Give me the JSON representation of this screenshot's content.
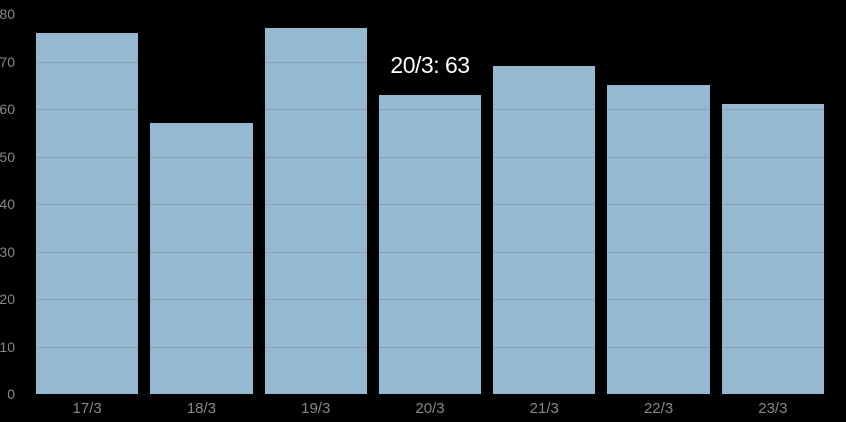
{
  "chart_data": {
    "type": "bar",
    "title": "",
    "xlabel": "",
    "ylabel": "",
    "categories": [
      "17/3",
      "18/3",
      "19/3",
      "20/3",
      "21/3",
      "22/3",
      "23/3"
    ],
    "values": [
      76,
      57,
      77,
      63,
      69,
      65,
      61
    ],
    "ylim": [
      0,
      80
    ],
    "y_ticks": [
      0,
      10,
      20,
      30,
      40,
      50,
      60,
      70,
      80
    ],
    "grid": true,
    "legend": "none",
    "annotation": {
      "label": "20/3: 63",
      "category": "20/3",
      "category_index": 3,
      "value": 63
    },
    "colors": {
      "background": "#000000",
      "bar": "#95b9d0",
      "grid_overlay": "rgba(0,0,0,0.11)",
      "axis_label": "#878787",
      "annotation_text": "#ffffff"
    }
  }
}
